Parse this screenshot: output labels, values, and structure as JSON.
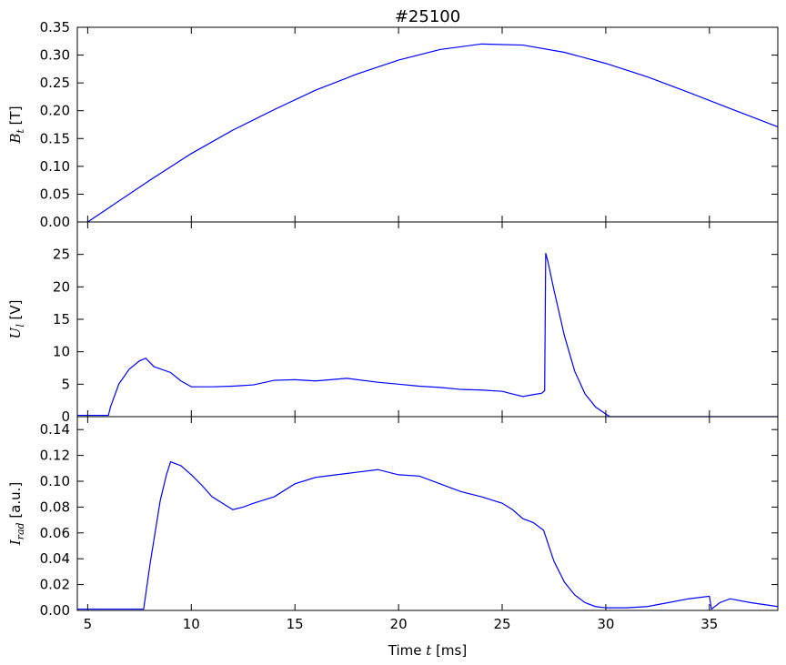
{
  "figure": {
    "title": "#25100",
    "xlabel": "Time $t$ [ms]",
    "xlabel_parts": {
      "pre": "Time ",
      "var": "t",
      "post": " [ms]"
    }
  },
  "chart_data": [
    {
      "type": "line",
      "ylabel_parts": {
        "sym": "B",
        "sub": "t",
        "post": " [T]"
      },
      "xlim": [
        4.5,
        38.3
      ],
      "ylim": [
        0.0,
        0.35
      ],
      "yticks": [
        "0.00",
        "0.05",
        "0.10",
        "0.15",
        "0.20",
        "0.25",
        "0.30",
        "0.35"
      ],
      "ytick_values": [
        0,
        0.05,
        0.1,
        0.15,
        0.2,
        0.25,
        0.3,
        0.35
      ],
      "color": "#0000ff",
      "series": [
        {
          "x": [
            5,
            6,
            8,
            10,
            12,
            14,
            16,
            18,
            20,
            22,
            24,
            26,
            28,
            30,
            32,
            34,
            36,
            38.3
          ],
          "y": [
            0.0,
            0.025,
            0.075,
            0.123,
            0.165,
            0.202,
            0.237,
            0.266,
            0.291,
            0.31,
            0.32,
            0.318,
            0.305,
            0.285,
            0.261,
            0.233,
            0.204,
            0.171
          ]
        }
      ]
    },
    {
      "type": "line",
      "ylabel_parts": {
        "sym": "U",
        "sub": "l",
        "post": " [V]"
      },
      "xlim": [
        4.5,
        38.3
      ],
      "ylim": [
        0,
        30
      ],
      "yticks": [
        "0",
        "5",
        "10",
        "15",
        "20",
        "25"
      ],
      "ytick_values": [
        0,
        5,
        10,
        15,
        20,
        25
      ],
      "color": "#0000ff",
      "series": [
        {
          "x": [
            4.5,
            6.0,
            6.1,
            6.5,
            7.0,
            7.5,
            7.8,
            8.2,
            9.0,
            9.5,
            10.0,
            11.0,
            12.0,
            13.0,
            14.0,
            15.0,
            16.0,
            17.5,
            19.0,
            20.0,
            21.0,
            22.0,
            23.0,
            24.0,
            25.0,
            25.5,
            26.0,
            26.5,
            26.9,
            27.05,
            27.1,
            27.2,
            27.5,
            28.0,
            28.5,
            29.0,
            29.5,
            30.0,
            30.2,
            38.3
          ],
          "y": [
            0.2,
            0.2,
            1.5,
            5.0,
            7.3,
            8.6,
            9.0,
            7.7,
            6.8,
            5.5,
            4.6,
            4.6,
            4.7,
            4.9,
            5.6,
            5.7,
            5.5,
            5.9,
            5.3,
            5.0,
            4.7,
            4.5,
            4.2,
            4.1,
            3.9,
            3.5,
            3.1,
            3.4,
            3.6,
            4.0,
            25.2,
            24.0,
            19.5,
            12.5,
            7.0,
            3.5,
            1.5,
            0.4,
            0.0,
            0.0
          ]
        }
      ]
    },
    {
      "type": "line",
      "ylabel_parts": {
        "sym": "I",
        "sub": "rad",
        "post": " [a.u.]"
      },
      "xlim": [
        4.5,
        38.3
      ],
      "ylim": [
        0.0,
        0.15
      ],
      "yticks": [
        "0.00",
        "0.02",
        "0.04",
        "0.06",
        "0.08",
        "0.10",
        "0.12",
        "0.14"
      ],
      "ytick_values": [
        0,
        0.02,
        0.04,
        0.06,
        0.08,
        0.1,
        0.12,
        0.14
      ],
      "color": "#0000ff",
      "series": [
        {
          "x": [
            4.5,
            7.7,
            8.0,
            8.5,
            8.8,
            9.0,
            9.5,
            10.0,
            10.5,
            11.0,
            11.5,
            12.0,
            12.5,
            13.0,
            14.0,
            15.0,
            16.0,
            17.0,
            18.0,
            19.0,
            20.0,
            21.0,
            22.0,
            23.0,
            24.0,
            25.0,
            25.5,
            26.0,
            26.5,
            27.0,
            27.5,
            28.0,
            28.5,
            29.0,
            29.5,
            30.0,
            31.0,
            32.0,
            33.0,
            34.0,
            35.0,
            35.1,
            35.5,
            36.0,
            37.0,
            38.3
          ],
          "y": [
            0.001,
            0.001,
            0.035,
            0.085,
            0.105,
            0.115,
            0.112,
            0.105,
            0.097,
            0.088,
            0.083,
            0.078,
            0.08,
            0.083,
            0.088,
            0.098,
            0.103,
            0.105,
            0.107,
            0.109,
            0.105,
            0.104,
            0.098,
            0.092,
            0.088,
            0.083,
            0.078,
            0.071,
            0.068,
            0.062,
            0.038,
            0.022,
            0.012,
            0.006,
            0.003,
            0.002,
            0.002,
            0.003,
            0.006,
            0.009,
            0.011,
            0.001,
            0.006,
            0.009,
            0.006,
            0.003
          ]
        }
      ]
    }
  ],
  "xaxis": {
    "ticks": [
      "5",
      "10",
      "15",
      "20",
      "25",
      "30",
      "35"
    ],
    "tick_values": [
      5,
      10,
      15,
      20,
      25,
      30,
      35
    ]
  }
}
